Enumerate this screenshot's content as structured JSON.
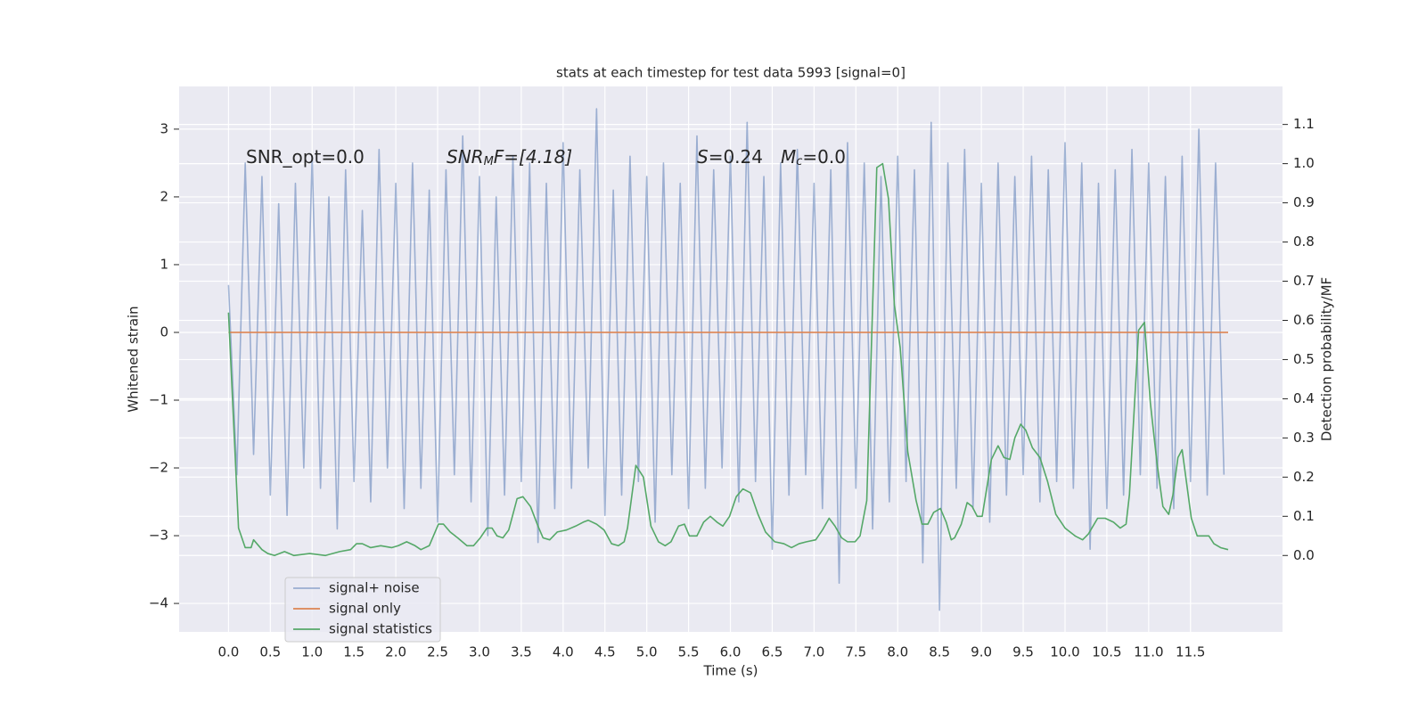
{
  "chart_data": {
    "type": "line",
    "title": "stats at each timestep for test data 5993 [signal=0]",
    "xlabel": "Time (s)",
    "ylabel": "Whitened strain",
    "y2label": "Detection probability/MF",
    "annotations": [
      [
        "SNR_opt=0.0"
      ],
      [
        "SNR",
        "M",
        "F=[4.18]"
      ],
      [
        "S",
        "=0.24"
      ],
      [
        "M",
        "c",
        "=0.0"
      ]
    ],
    "legend": "lower left",
    "grid": true,
    "xlim": [
      -0.59,
      12.6
    ],
    "xticks": [
      {
        "value": 0,
        "label": "0.0"
      },
      0.5,
      {
        "value": 1,
        "label": "1.0"
      },
      1.5,
      {
        "value": 2,
        "label": "2.0"
      },
      2.5,
      {
        "value": 3,
        "label": "3.0"
      },
      3.5,
      {
        "value": 4,
        "label": "4.0"
      },
      4.5,
      {
        "value": 5,
        "label": "5.0"
      },
      5.5,
      {
        "value": 6,
        "label": "6.0"
      },
      6.5,
      {
        "value": 7,
        "label": "7.0"
      },
      7.5,
      {
        "value": 8,
        "label": "8.0"
      },
      8.5,
      {
        "value": 9,
        "label": "9.0"
      },
      9.5,
      {
        "value": 10,
        "label": "10.0"
      },
      10.5,
      {
        "value": 11,
        "label": "11.0"
      },
      11.5
    ],
    "ylim": [
      -4.42,
      3.63
    ],
    "yticks": [
      {
        "value": -4,
        "label": "−4"
      },
      {
        "value": -3,
        "label": "−3"
      },
      {
        "value": -2,
        "label": "−2"
      },
      {
        "value": -1,
        "label": "−1"
      },
      0,
      1,
      2,
      3
    ],
    "y2lim": [
      -0.195,
      1.197
    ],
    "y2ticks": [
      {
        "value": 0,
        "label": "0.0"
      },
      0.1,
      0.2,
      0.3,
      0.4,
      0.5,
      0.6,
      0.7,
      0.8,
      0.9,
      {
        "value": 1,
        "label": "1.0"
      },
      1.1
    ],
    "series": [
      {
        "name": "signal+ noise",
        "color": "#4c72b0",
        "alpha": 0.5,
        "x": [
          0.0,
          0.1,
          0.2,
          0.3,
          0.4,
          0.5,
          0.6,
          0.7,
          0.8,
          0.9,
          1.0,
          1.1,
          1.2,
          1.3,
          1.4,
          1.5,
          1.6,
          1.7,
          1.8,
          1.9,
          2.0,
          2.1,
          2.2,
          2.3,
          2.4,
          2.5,
          2.6,
          2.7,
          2.8,
          2.9,
          3.0,
          3.1,
          3.2,
          3.3,
          3.4,
          3.5,
          3.6,
          3.7,
          3.8,
          3.9,
          4.0,
          4.1,
          4.2,
          4.3,
          4.4,
          4.5,
          4.6,
          4.7,
          4.8,
          4.9,
          5.0,
          5.1,
          5.2,
          5.3,
          5.4,
          5.5,
          5.6,
          5.7,
          5.8,
          5.9,
          6.0,
          6.1,
          6.2,
          6.3,
          6.4,
          6.5,
          6.6,
          6.7,
          6.8,
          6.9,
          7.0,
          7.1,
          7.2,
          7.3,
          7.4,
          7.5,
          7.6,
          7.7,
          7.8,
          7.9,
          8.0,
          8.1,
          8.2,
          8.3,
          8.4,
          8.5,
          8.6,
          8.7,
          8.8,
          8.9,
          9.0,
          9.1,
          9.2,
          9.3,
          9.4,
          9.5,
          9.6,
          9.7,
          9.8,
          9.9,
          10.0,
          10.1,
          10.2,
          10.3,
          10.4,
          10.5,
          10.6,
          10.7,
          10.8,
          10.9,
          11.0,
          11.1,
          11.2,
          11.3,
          11.4,
          11.5,
          11.6,
          11.7,
          11.8,
          11.9
        ],
        "values": [
          0.7,
          -2.1,
          2.5,
          -1.8,
          2.3,
          -2.4,
          1.9,
          -2.7,
          2.2,
          -2.0,
          2.6,
          -2.3,
          2.0,
          -2.9,
          2.4,
          -2.2,
          1.8,
          -2.5,
          2.7,
          -2.0,
          2.2,
          -2.6,
          2.5,
          -2.3,
          2.1,
          -2.8,
          2.4,
          -2.1,
          2.9,
          -2.5,
          2.3,
          -3.0,
          2.0,
          -2.4,
          2.6,
          -2.2,
          2.5,
          -3.1,
          2.2,
          -2.6,
          2.8,
          -2.3,
          2.4,
          -2.0,
          3.3,
          -2.7,
          2.1,
          -2.4,
          2.6,
          -2.2,
          2.3,
          -2.8,
          2.5,
          -2.1,
          2.2,
          -2.6,
          2.9,
          -2.3,
          2.4,
          -2.0,
          2.6,
          -2.5,
          3.1,
          -2.2,
          2.3,
          -3.2,
          2.5,
          -2.4,
          2.7,
          -2.1,
          2.2,
          -2.6,
          2.4,
          -3.7,
          2.8,
          -2.3,
          2.5,
          -2.9,
          2.3,
          -2.5,
          2.6,
          -2.2,
          2.4,
          -3.4,
          3.1,
          -4.1,
          2.5,
          -2.3,
          2.7,
          -2.6,
          2.2,
          -2.8,
          2.5,
          -2.4,
          2.3,
          -2.1,
          2.6,
          -2.5,
          2.4,
          -2.2,
          2.8,
          -2.3,
          2.5,
          -3.2,
          2.2,
          -2.6,
          2.4,
          -2.4,
          2.7,
          -2.1,
          2.5,
          -2.3,
          2.3,
          -2.6,
          2.6,
          -2.2,
          3.0,
          -2.4,
          2.5,
          -2.1
        ]
      },
      {
        "name": "signal only",
        "color": "#dd8452",
        "x": [
          0.0,
          11.95
        ],
        "values": [
          0,
          0
        ]
      },
      {
        "name": "signal statistics",
        "color": "#55a868",
        "axis": "y2",
        "x": [
          0.0,
          0.12,
          0.2,
          0.27,
          0.3,
          0.4,
          0.47,
          0.55,
          0.67,
          0.78,
          0.97,
          1.16,
          1.33,
          1.46,
          1.53,
          1.6,
          1.7,
          1.82,
          1.95,
          2.03,
          2.13,
          2.23,
          2.3,
          2.4,
          2.51,
          2.57,
          2.65,
          2.74,
          2.85,
          2.93,
          3.01,
          3.09,
          3.15,
          3.21,
          3.28,
          3.35,
          3.45,
          3.52,
          3.61,
          3.7,
          3.76,
          3.84,
          3.93,
          4.04,
          4.15,
          4.24,
          4.3,
          4.4,
          4.49,
          4.58,
          4.66,
          4.73,
          4.77,
          4.87,
          4.96,
          5.05,
          5.14,
          5.22,
          5.29,
          5.38,
          5.45,
          5.51,
          5.6,
          5.68,
          5.76,
          5.84,
          5.91,
          5.99,
          6.07,
          6.15,
          6.24,
          6.33,
          6.42,
          6.53,
          6.64,
          6.73,
          6.82,
          6.91,
          7.02,
          7.1,
          7.18,
          7.25,
          7.33,
          7.4,
          7.49,
          7.55,
          7.63,
          7.75,
          7.82,
          7.89,
          7.96,
          8.03,
          8.12,
          8.22,
          8.29,
          8.36,
          8.43,
          8.51,
          8.58,
          8.64,
          8.68,
          8.76,
          8.83,
          8.89,
          8.95,
          9.01,
          9.12,
          9.2,
          9.27,
          9.34,
          9.4,
          9.47,
          9.53,
          9.61,
          9.7,
          9.79,
          9.89,
          10.0,
          10.12,
          10.21,
          10.28,
          10.39,
          10.48,
          10.58,
          10.66,
          10.73,
          10.77,
          10.88,
          10.95,
          11.02,
          11.1,
          11.17,
          11.24,
          11.29,
          11.35,
          11.4,
          11.51,
          11.58,
          11.64,
          11.72,
          11.78,
          11.86,
          11.95
        ],
        "values": [
          0.62,
          0.07,
          0.02,
          0.02,
          0.04,
          0.015,
          0.005,
          0.0,
          0.01,
          0.0,
          0.005,
          0.0,
          0.01,
          0.015,
          0.03,
          0.03,
          0.02,
          0.025,
          0.02,
          0.025,
          0.035,
          0.025,
          0.015,
          0.025,
          0.08,
          0.08,
          0.06,
          0.045,
          0.025,
          0.025,
          0.045,
          0.07,
          0.07,
          0.05,
          0.045,
          0.065,
          0.145,
          0.15,
          0.125,
          0.075,
          0.045,
          0.04,
          0.06,
          0.065,
          0.075,
          0.085,
          0.09,
          0.08,
          0.065,
          0.03,
          0.025,
          0.035,
          0.07,
          0.23,
          0.2,
          0.075,
          0.035,
          0.025,
          0.035,
          0.075,
          0.08,
          0.05,
          0.05,
          0.085,
          0.1,
          0.085,
          0.075,
          0.1,
          0.15,
          0.17,
          0.16,
          0.105,
          0.06,
          0.035,
          0.03,
          0.02,
          0.03,
          0.035,
          0.04,
          0.065,
          0.095,
          0.075,
          0.045,
          0.035,
          0.035,
          0.05,
          0.14,
          0.99,
          1.0,
          0.91,
          0.64,
          0.53,
          0.265,
          0.14,
          0.08,
          0.08,
          0.11,
          0.12,
          0.085,
          0.04,
          0.045,
          0.08,
          0.135,
          0.125,
          0.1,
          0.1,
          0.245,
          0.28,
          0.25,
          0.245,
          0.3,
          0.335,
          0.32,
          0.275,
          0.25,
          0.19,
          0.105,
          0.07,
          0.05,
          0.04,
          0.055,
          0.095,
          0.095,
          0.085,
          0.07,
          0.08,
          0.155,
          0.575,
          0.595,
          0.39,
          0.235,
          0.125,
          0.105,
          0.155,
          0.25,
          0.27,
          0.095,
          0.05,
          0.05,
          0.05,
          0.03,
          0.02,
          0.015
        ]
      }
    ]
  }
}
